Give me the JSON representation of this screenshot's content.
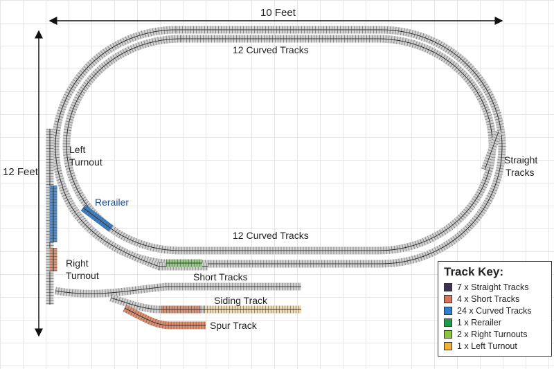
{
  "dimensions": {
    "width_label": "10 Feet",
    "height_label": "12 Feet"
  },
  "labels": {
    "outer_curved": "12 Curved Tracks",
    "inner_curved": "12 Curved Tracks",
    "straight": "Straight\nTracks",
    "straight_line1": "Straight",
    "straight_line2": "Tracks",
    "left_turnout_line1": "Left",
    "left_turnout_line2": "Turnout",
    "rerailer": "Rerailer",
    "right_turnout_line1": "Right",
    "right_turnout_line2": "Turnout",
    "short_tracks": "Short Tracks",
    "siding_track": "Siding Track",
    "spur_track": "Spur Track"
  },
  "track_key": {
    "title": "Track Key:",
    "items": [
      {
        "label": "7 x Straight Tracks",
        "color": "#3d3050"
      },
      {
        "label": "4 x Short Tracks",
        "color": "#d9735a"
      },
      {
        "label": "24 x Curved Tracks",
        "color": "#2f7fd0"
      },
      {
        "label": "1 x Rerailer",
        "color": "#1f9a4a"
      },
      {
        "label": "2 x Right Turnouts",
        "color": "#8cc43c"
      },
      {
        "label": "1 x Left Turnout",
        "color": "#f0b030"
      }
    ]
  },
  "colors": {
    "label_blue": "#1f4e8c",
    "track_gray": "#c8c8c8",
    "tie_dark": "#444444"
  }
}
